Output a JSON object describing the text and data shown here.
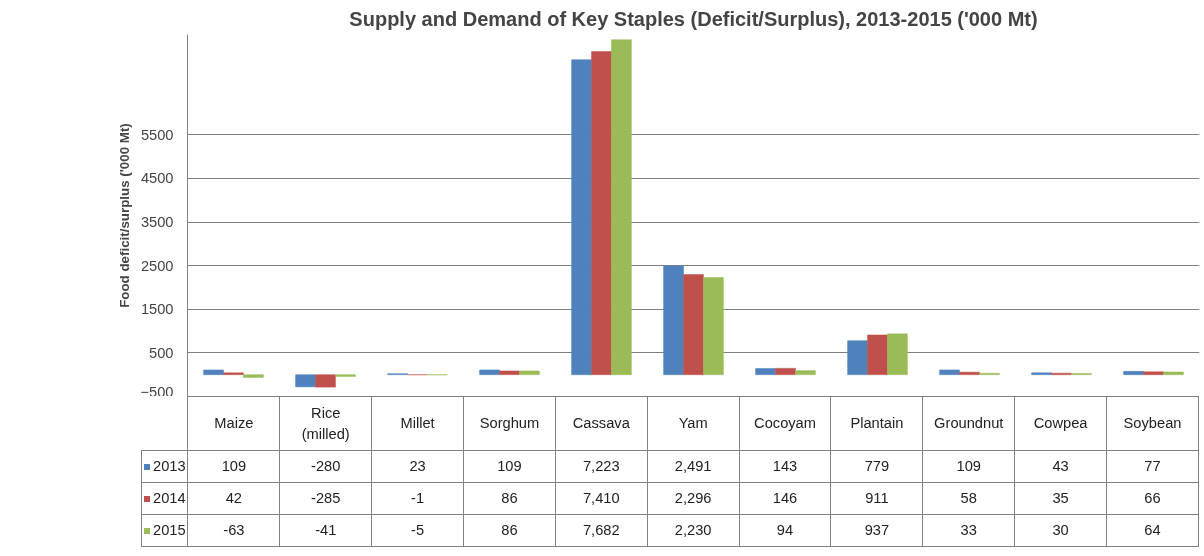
{
  "chart_data": {
    "type": "bar",
    "title": "Supply and Demand of Key Staples (Deficit/Surplus), 2013-2015 ('000 Mt)",
    "ylabel": "Food deficit/surplus ('000 Mt)",
    "categories": [
      "Maize",
      "Rice\n(milled)",
      "Millet",
      "Sorghum",
      "Cassava",
      "Yam",
      "Cocoyam",
      "Plantain",
      "Groundnut",
      "Cowpea",
      "Soybean"
    ],
    "series": [
      {
        "name": "2013",
        "color": "#4f81bd",
        "values": [
          109,
          -280,
          23,
          109,
          7223,
          2491,
          143,
          779,
          109,
          43,
          77
        ],
        "value_labels": [
          "109",
          "-280",
          "23",
          "109",
          "7,223",
          "2,491",
          "143",
          "779",
          "109",
          "43",
          "77"
        ]
      },
      {
        "name": "2014",
        "color": "#c0504d",
        "values": [
          42,
          -285,
          -1,
          86,
          7410,
          2296,
          146,
          911,
          58,
          35,
          66
        ],
        "value_labels": [
          "42",
          "-285",
          "-1",
          "86",
          "7,410",
          "2,296",
          "146",
          "911",
          "58",
          "35",
          "66"
        ]
      },
      {
        "name": "2015",
        "color": "#9bbb59",
        "values": [
          -63,
          -41,
          -5,
          86,
          7682,
          2230,
          94,
          937,
          33,
          30,
          64
        ],
        "value_labels": [
          "-63",
          "-41",
          "-5",
          "86",
          "7,682",
          "2,230",
          "94",
          "937",
          "33",
          "30",
          "64"
        ]
      }
    ],
    "ylim": [
      -500,
      7800
    ],
    "yticks": [
      -500,
      500,
      1500,
      2500,
      3500,
      4500,
      5500
    ],
    "grid": "y",
    "legend": "bottom"
  }
}
